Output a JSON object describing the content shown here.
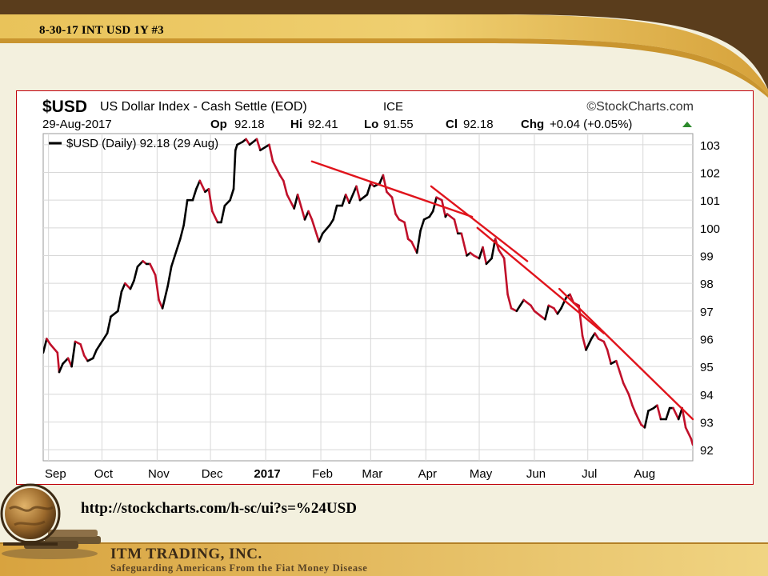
{
  "slide": {
    "title": "8-30-17 INT USD 1Y #3",
    "source_url": "http://stockcharts.com/h-sc/ui?s=%24USD",
    "company": "ITM TRADING, INC.",
    "tagline": "Safeguarding Americans From the Fiat Money Disease"
  },
  "chart_header": {
    "symbol": "$USD",
    "name": "US Dollar Index - Cash Settle (EOD)",
    "exchange": "ICE",
    "brand": "©StockCharts.com",
    "date": "29-Aug-2017",
    "op_label": "Op",
    "op": "92.18",
    "hi_label": "Hi",
    "hi": "92.41",
    "lo_label": "Lo",
    "lo": "91.55",
    "cl_label": "Cl",
    "cl": "92.18",
    "chg_label": "Chg",
    "chg": "+0.04 (+0.05%)",
    "legend": "$USD (Daily) 92.18 (29 Aug)"
  },
  "colors": {
    "up": "#000000",
    "down": "#c0102a",
    "trend": "#e0141c",
    "grid": "#d8d8d8",
    "chg_arrow": "#2c8a2c"
  },
  "chart_data": {
    "type": "line",
    "title": "$USD US Dollar Index - Cash Settle (EOD)",
    "legend": [
      "$USD (Daily) 92.18 (29 Aug)"
    ],
    "x_labels": [
      "Sep",
      "Oct",
      "Nov",
      "Dec",
      "2017",
      "Feb",
      "Mar",
      "Apr",
      "May",
      "Jun",
      "Jul",
      "Aug"
    ],
    "y_ticks": [
      92,
      93,
      94,
      95,
      96,
      97,
      98,
      99,
      100,
      101,
      102,
      103
    ],
    "ylim": [
      91.6,
      103.4
    ],
    "x_range": [
      "2016-08-29",
      "2017-08-29"
    ],
    "grid": true,
    "series": [
      {
        "name": "$USD (Daily)",
        "points": [
          [
            "2016-08-29",
            95.5
          ],
          [
            "2016-08-31",
            96.0
          ],
          [
            "2016-09-02",
            95.8
          ],
          [
            "2016-09-06",
            95.5
          ],
          [
            "2016-09-07",
            94.8
          ],
          [
            "2016-09-09",
            95.1
          ],
          [
            "2016-09-12",
            95.3
          ],
          [
            "2016-09-14",
            95.0
          ],
          [
            "2016-09-16",
            95.9
          ],
          [
            "2016-09-19",
            95.8
          ],
          [
            "2016-09-21",
            95.4
          ],
          [
            "2016-09-23",
            95.2
          ],
          [
            "2016-09-26",
            95.3
          ],
          [
            "2016-09-28",
            95.6
          ],
          [
            "2016-09-30",
            95.8
          ],
          [
            "2016-10-04",
            96.2
          ],
          [
            "2016-10-06",
            96.8
          ],
          [
            "2016-10-10",
            97.0
          ],
          [
            "2016-10-12",
            97.7
          ],
          [
            "2016-10-14",
            98.0
          ],
          [
            "2016-10-17",
            97.8
          ],
          [
            "2016-10-19",
            98.1
          ],
          [
            "2016-10-21",
            98.6
          ],
          [
            "2016-10-24",
            98.8
          ],
          [
            "2016-10-26",
            98.7
          ],
          [
            "2016-10-28",
            98.7
          ],
          [
            "2016-10-31",
            98.3
          ],
          [
            "2016-11-02",
            97.4
          ],
          [
            "2016-11-04",
            97.1
          ],
          [
            "2016-11-07",
            97.9
          ],
          [
            "2016-11-09",
            98.6
          ],
          [
            "2016-11-11",
            99.0
          ],
          [
            "2016-11-14",
            99.6
          ],
          [
            "2016-11-16",
            100.1
          ],
          [
            "2016-11-18",
            101.0
          ],
          [
            "2016-11-21",
            101.0
          ],
          [
            "2016-11-23",
            101.4
          ],
          [
            "2016-11-25",
            101.7
          ],
          [
            "2016-11-28",
            101.3
          ],
          [
            "2016-11-30",
            101.4
          ],
          [
            "2016-12-02",
            100.6
          ],
          [
            "2016-12-05",
            100.2
          ],
          [
            "2016-12-07",
            100.2
          ],
          [
            "2016-12-09",
            100.8
          ],
          [
            "2016-12-12",
            101.0
          ],
          [
            "2016-12-14",
            101.4
          ],
          [
            "2016-12-15",
            102.8
          ],
          [
            "2016-12-16",
            103.0
          ],
          [
            "2016-12-19",
            103.1
          ],
          [
            "2016-12-21",
            103.2
          ],
          [
            "2016-12-23",
            103.0
          ],
          [
            "2016-12-27",
            103.2
          ],
          [
            "2016-12-29",
            102.8
          ],
          [
            "2017-01-03",
            103.0
          ],
          [
            "2017-01-05",
            102.4
          ],
          [
            "2017-01-09",
            101.9
          ],
          [
            "2017-01-11",
            101.7
          ],
          [
            "2017-01-13",
            101.2
          ],
          [
            "2017-01-17",
            100.7
          ],
          [
            "2017-01-19",
            101.2
          ],
          [
            "2017-01-23",
            100.3
          ],
          [
            "2017-01-25",
            100.6
          ],
          [
            "2017-01-27",
            100.3
          ],
          [
            "2017-01-31",
            99.5
          ],
          [
            "2017-02-02",
            99.8
          ],
          [
            "2017-02-06",
            100.1
          ],
          [
            "2017-02-08",
            100.3
          ],
          [
            "2017-02-10",
            100.8
          ],
          [
            "2017-02-13",
            100.8
          ],
          [
            "2017-02-15",
            101.2
          ],
          [
            "2017-02-17",
            100.9
          ],
          [
            "2017-02-21",
            101.5
          ],
          [
            "2017-02-23",
            101.0
          ],
          [
            "2017-02-27",
            101.2
          ],
          [
            "2017-03-01",
            101.6
          ],
          [
            "2017-03-03",
            101.5
          ],
          [
            "2017-03-06",
            101.6
          ],
          [
            "2017-03-08",
            101.9
          ],
          [
            "2017-03-10",
            101.3
          ],
          [
            "2017-03-13",
            101.1
          ],
          [
            "2017-03-15",
            100.5
          ],
          [
            "2017-03-17",
            100.3
          ],
          [
            "2017-03-20",
            100.2
          ],
          [
            "2017-03-22",
            99.6
          ],
          [
            "2017-03-24",
            99.5
          ],
          [
            "2017-03-27",
            99.1
          ],
          [
            "2017-03-29",
            99.9
          ],
          [
            "2017-03-31",
            100.3
          ],
          [
            "2017-04-03",
            100.4
          ],
          [
            "2017-04-05",
            100.6
          ],
          [
            "2017-04-07",
            101.1
          ],
          [
            "2017-04-10",
            101.0
          ],
          [
            "2017-04-12",
            100.4
          ],
          [
            "2017-04-13",
            100.5
          ],
          [
            "2017-04-17",
            100.3
          ],
          [
            "2017-04-19",
            99.8
          ],
          [
            "2017-04-21",
            99.8
          ],
          [
            "2017-04-24",
            99.0
          ],
          [
            "2017-04-26",
            99.1
          ],
          [
            "2017-04-28",
            99.0
          ],
          [
            "2017-05-01",
            98.9
          ],
          [
            "2017-05-03",
            99.3
          ],
          [
            "2017-05-05",
            98.7
          ],
          [
            "2017-05-08",
            98.9
          ],
          [
            "2017-05-10",
            99.6
          ],
          [
            "2017-05-12",
            99.2
          ],
          [
            "2017-05-15",
            98.9
          ],
          [
            "2017-05-17",
            97.6
          ],
          [
            "2017-05-19",
            97.1
          ],
          [
            "2017-05-22",
            97.0
          ],
          [
            "2017-05-24",
            97.2
          ],
          [
            "2017-05-26",
            97.4
          ],
          [
            "2017-05-30",
            97.2
          ],
          [
            "2017-06-01",
            97.0
          ],
          [
            "2017-06-05",
            96.8
          ],
          [
            "2017-06-07",
            96.7
          ],
          [
            "2017-06-09",
            97.2
          ],
          [
            "2017-06-12",
            97.1
          ],
          [
            "2017-06-14",
            96.9
          ],
          [
            "2017-06-16",
            97.1
          ],
          [
            "2017-06-19",
            97.5
          ],
          [
            "2017-06-21",
            97.6
          ],
          [
            "2017-06-23",
            97.3
          ],
          [
            "2017-06-26",
            97.2
          ],
          [
            "2017-06-28",
            96.1
          ],
          [
            "2017-06-30",
            95.6
          ],
          [
            "2017-07-03",
            96.0
          ],
          [
            "2017-07-05",
            96.2
          ],
          [
            "2017-07-07",
            96.0
          ],
          [
            "2017-07-10",
            95.9
          ],
          [
            "2017-07-12",
            95.6
          ],
          [
            "2017-07-14",
            95.1
          ],
          [
            "2017-07-17",
            95.2
          ],
          [
            "2017-07-19",
            94.8
          ],
          [
            "2017-07-21",
            94.4
          ],
          [
            "2017-07-24",
            94.0
          ],
          [
            "2017-07-26",
            93.6
          ],
          [
            "2017-07-28",
            93.3
          ],
          [
            "2017-07-31",
            92.9
          ],
          [
            "2017-08-02",
            92.8
          ],
          [
            "2017-08-04",
            93.4
          ],
          [
            "2017-08-07",
            93.5
          ],
          [
            "2017-08-09",
            93.6
          ],
          [
            "2017-08-11",
            93.1
          ],
          [
            "2017-08-14",
            93.1
          ],
          [
            "2017-08-16",
            93.5
          ],
          [
            "2017-08-18",
            93.5
          ],
          [
            "2017-08-21",
            93.1
          ],
          [
            "2017-08-23",
            93.5
          ],
          [
            "2017-08-25",
            92.8
          ],
          [
            "2017-08-28",
            92.4
          ],
          [
            "2017-08-29",
            92.18
          ]
        ]
      }
    ],
    "annotations": [
      {
        "type": "trendline",
        "from": [
          "2017-01-27",
          102.4
        ],
        "to": [
          "2017-04-27",
          100.4
        ]
      },
      {
        "type": "trendline",
        "from": [
          "2017-04-04",
          101.5
        ],
        "to": [
          "2017-05-28",
          98.8
        ]
      },
      {
        "type": "trendline",
        "from": [
          "2017-04-30",
          100.0
        ],
        "to": [
          "2017-07-10",
          96.2
        ]
      },
      {
        "type": "trendline",
        "from": [
          "2017-06-15",
          97.8
        ],
        "to": [
          "2017-08-29",
          93.1
        ]
      }
    ]
  }
}
